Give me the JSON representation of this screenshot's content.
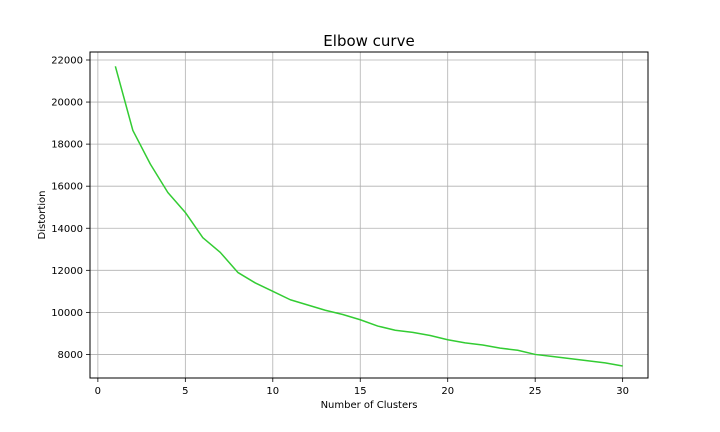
{
  "chart_data": {
    "type": "line",
    "title": "Elbow curve",
    "xlabel": "Number of Clusters",
    "ylabel": "Distortion",
    "xlim": [
      -0.45,
      31.45
    ],
    "ylim": [
      6880,
      22380
    ],
    "xticks": [
      0,
      5,
      10,
      15,
      20,
      25,
      30
    ],
    "yticks": [
      8000,
      10000,
      12000,
      14000,
      16000,
      18000,
      20000,
      22000
    ],
    "grid": true,
    "series": [
      {
        "color": "#33cc33",
        "x": [
          1,
          2,
          3,
          4,
          5,
          6,
          7,
          8,
          9,
          10,
          11,
          12,
          13,
          14,
          15,
          16,
          17,
          18,
          19,
          20,
          21,
          22,
          23,
          24,
          25,
          26,
          27,
          28,
          29,
          30
        ],
        "values": [
          21700,
          18650,
          17050,
          15700,
          14750,
          13550,
          12850,
          11900,
          11400,
          11000,
          10600,
          10350,
          10100,
          9900,
          9650,
          9350,
          9150,
          9050,
          8900,
          8700,
          8550,
          8450,
          8300,
          8200,
          8000,
          7900,
          7800,
          7700,
          7600,
          7450
        ]
      }
    ]
  }
}
